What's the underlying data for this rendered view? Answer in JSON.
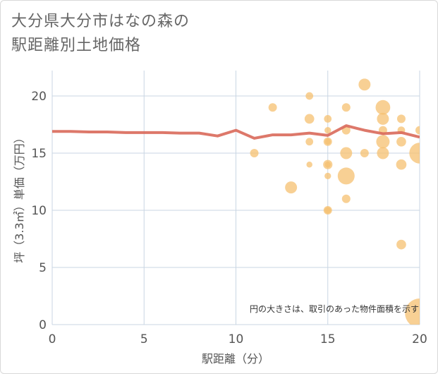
{
  "title_lines": [
    "大分県大分市はなの森の",
    "駅距離別土地価格"
  ],
  "chart_data": {
    "type": "scatter",
    "xlabel": "駅距離（分）",
    "ylabel": "坪（3.3㎡）単価（万円）",
    "xlim": [
      0,
      20
    ],
    "ylim": [
      0,
      22
    ],
    "xticks": [
      0,
      5,
      10,
      15,
      20
    ],
    "yticks": [
      0,
      5,
      10,
      15,
      20
    ],
    "grid": true,
    "note": "円の大きさは、取引のあった物件面積を示す",
    "colors": {
      "bubble": "#f5c070",
      "line": "#d9695a",
      "grid": "#c9d6e3"
    },
    "trend_line": {
      "x": [
        0,
        1,
        2,
        3,
        4,
        5,
        6,
        7,
        8,
        9,
        10,
        11,
        12,
        13,
        14,
        15,
        16,
        17,
        18,
        19,
        20
      ],
      "y": [
        16.9,
        16.9,
        16.85,
        16.85,
        16.8,
        16.8,
        16.8,
        16.75,
        16.75,
        16.5,
        17.0,
        16.3,
        16.6,
        16.6,
        16.75,
        16.55,
        17.4,
        17.0,
        16.7,
        16.8,
        16.4
      ]
    },
    "points": [
      {
        "x": 11,
        "y": 15,
        "s": 1
      },
      {
        "x": 12,
        "y": 19,
        "s": 1
      },
      {
        "x": 13,
        "y": 12,
        "s": 2
      },
      {
        "x": 14,
        "y": 20,
        "s": 0.8
      },
      {
        "x": 14,
        "y": 18,
        "s": 1.3
      },
      {
        "x": 14,
        "y": 16,
        "s": 0.8
      },
      {
        "x": 14,
        "y": 14,
        "s": 0.5
      },
      {
        "x": 15,
        "y": 18,
        "s": 0.8
      },
      {
        "x": 15,
        "y": 17,
        "s": 0.6
      },
      {
        "x": 15,
        "y": 16,
        "s": 1
      },
      {
        "x": 15,
        "y": 16,
        "s": 0.5
      },
      {
        "x": 15,
        "y": 14,
        "s": 1.2
      },
      {
        "x": 15,
        "y": 14,
        "s": 0.5
      },
      {
        "x": 15,
        "y": 13,
        "s": 0.6
      },
      {
        "x": 15,
        "y": 10,
        "s": 1
      },
      {
        "x": 15,
        "y": 10,
        "s": 0.6
      },
      {
        "x": 16,
        "y": 19,
        "s": 1
      },
      {
        "x": 16,
        "y": 17,
        "s": 1
      },
      {
        "x": 16,
        "y": 15,
        "s": 2
      },
      {
        "x": 16,
        "y": 13,
        "s": 4
      },
      {
        "x": 16,
        "y": 11,
        "s": 1
      },
      {
        "x": 17,
        "y": 21,
        "s": 2
      },
      {
        "x": 17,
        "y": 15,
        "s": 1
      },
      {
        "x": 18,
        "y": 19,
        "s": 3
      },
      {
        "x": 18,
        "y": 18,
        "s": 2
      },
      {
        "x": 18,
        "y": 17,
        "s": 1
      },
      {
        "x": 18,
        "y": 16,
        "s": 2.5
      },
      {
        "x": 18,
        "y": 15,
        "s": 2
      },
      {
        "x": 19,
        "y": 18,
        "s": 1
      },
      {
        "x": 19,
        "y": 17,
        "s": 0.8
      },
      {
        "x": 19,
        "y": 16,
        "s": 1.3
      },
      {
        "x": 19,
        "y": 14,
        "s": 1.5
      },
      {
        "x": 19,
        "y": 7,
        "s": 1.3
      },
      {
        "x": 20,
        "y": 17,
        "s": 1
      },
      {
        "x": 20,
        "y": 15,
        "s": 6
      },
      {
        "x": 20,
        "y": 1,
        "s": 12
      }
    ]
  }
}
